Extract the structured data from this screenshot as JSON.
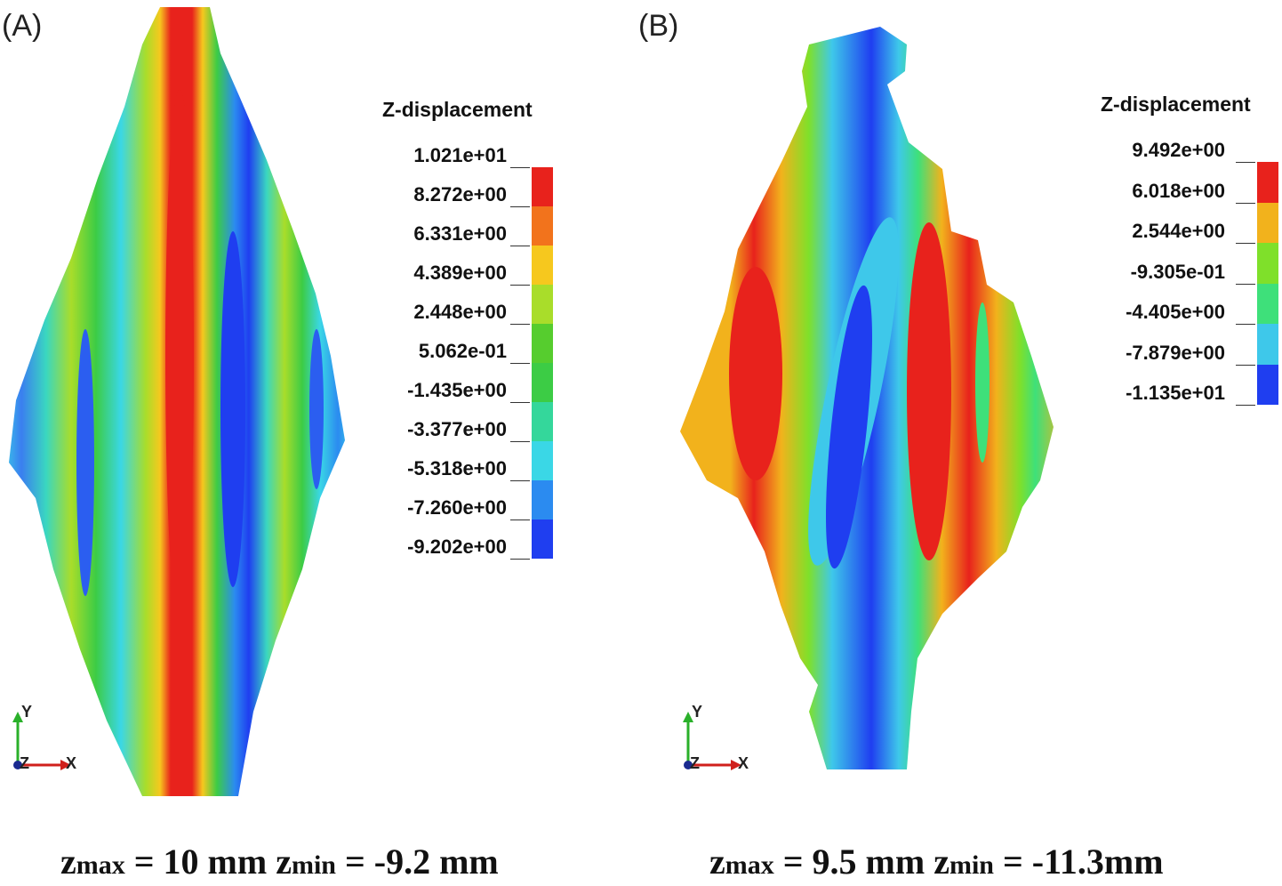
{
  "panels": [
    {
      "label": "(A)",
      "legend_title": "Z-displacement",
      "legend_values": [
        "1.021e+01",
        "8.272e+00",
        "6.331e+00",
        "4.389e+00",
        "2.448e+00",
        "5.062e-01",
        "-1.435e+00",
        "-3.377e+00",
        "-5.318e+00",
        "-7.260e+00",
        "-9.202e+00"
      ],
      "legend_colors": [
        "#e8221c",
        "#f2731c",
        "#f6c81e",
        "#a9dd2a",
        "#56cd2e",
        "#3ccc45",
        "#34d79b",
        "#3ad7e6",
        "#2b8bf0",
        "#1f3ef0"
      ],
      "caption": {
        "zmax_label": "z",
        "zmax_sub": "max",
        "zmax_text": " = 10 mm ",
        "zmin_label": "z",
        "zmin_sub": "min",
        "zmin_text": " = -9.2 mm"
      },
      "axes": {
        "y": "Y",
        "x": "X",
        "z": "Z"
      }
    },
    {
      "label": "(B)",
      "legend_title": "Z-displacement",
      "legend_values": [
        "9.492e+00",
        "6.018e+00",
        "2.544e+00",
        "-9.305e-01",
        "-4.405e+00",
        "-7.879e+00",
        "-1.135e+01"
      ],
      "legend_colors": [
        "#e8221c",
        "#f2b21c",
        "#7fe02a",
        "#3ee07a",
        "#3ec8ea",
        "#1f3ef0"
      ],
      "caption": {
        "zmax_label": "z",
        "zmax_sub": "max",
        "zmax_text": " = 9.5 mm ",
        "zmin_label": "z",
        "zmin_sub": "min",
        "zmin_text": " = -11.3mm"
      },
      "axes": {
        "y": "Y",
        "x": "X",
        "z": "Z"
      }
    }
  ]
}
